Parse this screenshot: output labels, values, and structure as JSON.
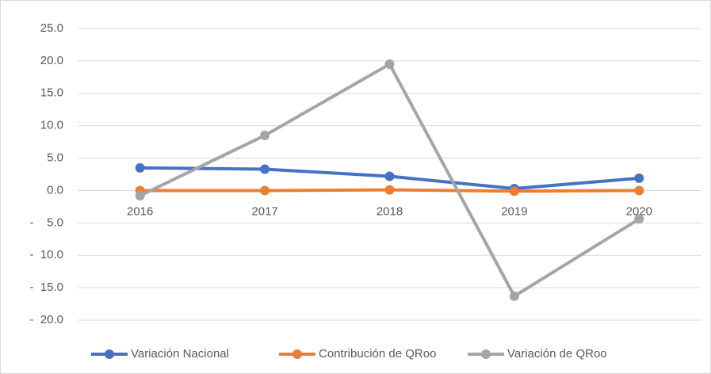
{
  "chart_data": {
    "type": "line",
    "categories": [
      "2016",
      "2017",
      "2018",
      "2019",
      "2020"
    ],
    "series": [
      {
        "name": "Variación Nacional",
        "color": "#4472c4",
        "values": [
          3.5,
          3.3,
          2.2,
          0.3,
          1.9
        ]
      },
      {
        "name": "Contribución de QRoo",
        "color": "#ed7d31",
        "values": [
          0.0,
          0.0,
          0.1,
          -0.1,
          0.0
        ]
      },
      {
        "name": "Variación de QRoo",
        "color": "#a5a5a5",
        "values": [
          -0.8,
          8.5,
          19.5,
          -16.3,
          -4.4
        ]
      }
    ],
    "ylim": [
      -20,
      25
    ],
    "yticks": [
      {
        "value": -20,
        "label": "-  20.0"
      },
      {
        "value": -15,
        "label": "-  15.0"
      },
      {
        "value": -10,
        "label": "-  10.0"
      },
      {
        "value": -5,
        "label": "-    5.0"
      },
      {
        "value": 0,
        "label": "0.0"
      },
      {
        "value": 5,
        "label": "5.0"
      },
      {
        "value": 10,
        "label": "10.0"
      },
      {
        "value": 15,
        "label": "15.0"
      },
      {
        "value": 20,
        "label": "20.0"
      },
      {
        "value": 25,
        "label": "25.0"
      }
    ],
    "grid": true,
    "legend": "bottom"
  }
}
